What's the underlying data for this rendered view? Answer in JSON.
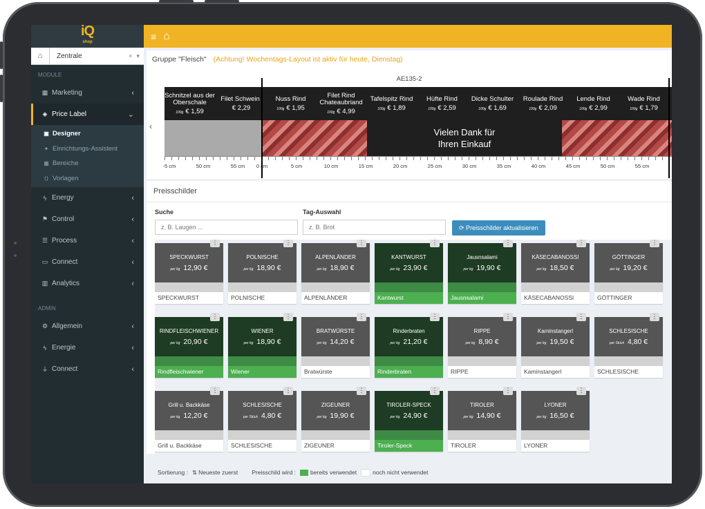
{
  "logo": {
    "main": "iQ",
    "sub": "shop"
  },
  "filial": {
    "value": "Zentrale",
    "clear": "×",
    "caret": "▾"
  },
  "sidebar": {
    "sections": {
      "module": "MODULE",
      "admin": "ADMIN"
    },
    "items_module": [
      {
        "label": "Marketing",
        "icon": "calendar-icon"
      },
      {
        "label": "Price Label",
        "icon": "tag-icon",
        "active": true
      },
      {
        "label": "Energy",
        "icon": "bolt-icon"
      },
      {
        "label": "Control",
        "icon": "flag-icon"
      },
      {
        "label": "Process",
        "icon": "sliders-icon"
      },
      {
        "label": "Connect",
        "icon": "window-icon"
      },
      {
        "label": "Analytics",
        "icon": "bar-chart-icon"
      }
    ],
    "submenu": [
      {
        "label": "Designer",
        "active": true
      },
      {
        "label": "Einrichtungs-Assistent"
      },
      {
        "label": "Bereiche"
      },
      {
        "label": "Vorlagen"
      }
    ],
    "items_admin": [
      {
        "label": "Allgemein",
        "icon": "gear-icon"
      },
      {
        "label": "Energie",
        "icon": "bolt-icon"
      },
      {
        "label": "Connect",
        "icon": "plug-icon"
      }
    ]
  },
  "group": {
    "title": "Gruppe \"Fleisch\"",
    "warning": "(Achtung! Wochentags-Layout ist aktiv für heute, Dienstag)"
  },
  "strip": {
    "id": "AE135-2",
    "slots": [
      {
        "name": "Schnitzel aus der Oberschale",
        "unit": "100g",
        "price": "€ 1,59"
      },
      {
        "name": "Filet Schwein",
        "unit": "",
        "price": "€ 2,29"
      },
      {
        "name": "Nuss Rind",
        "unit": "100g",
        "price": "€ 1,95"
      },
      {
        "name": "Filet Rind Chateaubriand",
        "unit": "100g",
        "price": "€ 4,99"
      },
      {
        "name": "Tafelspitz Rind",
        "unit": "100g",
        "price": "€ 1,89"
      },
      {
        "name": "Hüfte Rind",
        "unit": "100g",
        "price": "€ 2,59"
      },
      {
        "name": "Dicke Schulter",
        "unit": "100g",
        "price": "€ 1,69"
      },
      {
        "name": "Roulade Rind",
        "unit": "100g",
        "price": "€ 2,09"
      },
      {
        "name": "Lende Rind",
        "unit": "100g",
        "price": "€ 2,99"
      },
      {
        "name": "Wade Rind",
        "unit": "100g",
        "price": "€ 1,79"
      }
    ],
    "thanks_line1": "Vielen Dank für",
    "thanks_line2": "Ihren Einkauf",
    "ruler_left": [
      "-5 cm",
      "50 cm",
      "55 cm"
    ],
    "ruler_right": [
      "0 cm",
      "5 cm",
      "10 cm",
      "15 cm",
      "20 cm",
      "25 cm",
      "30 cm",
      "35 cm",
      "40 cm",
      "45 cm",
      "50 cm",
      "55 cm",
      "0 c"
    ]
  },
  "preis": {
    "title": "Preisschilder",
    "search_label": "Suche",
    "search_placeholder": "z. B. Laugen ...",
    "tag_label": "Tag-Auswahl",
    "tag_placeholder": "z. B. Brot",
    "refresh_label": "Preisschilder aktualisieren",
    "cards": [
      {
        "name": "SPECKWURST",
        "unit": "per kg",
        "price": "12,90 €",
        "label": "SPECKWURST",
        "used": false
      },
      {
        "name": "POLNISCHE",
        "unit": "per kg",
        "price": "18,90 €",
        "label": "POLNISCHE",
        "used": false
      },
      {
        "name": "ALPENLÄNDER",
        "unit": "per kg",
        "price": "18,90 €",
        "label": "ALPENLÄNDER",
        "used": false
      },
      {
        "name": "KANTWURST",
        "unit": "per kg",
        "price": "23,90 €",
        "label": "Kantwurst",
        "used": true
      },
      {
        "name": "Jausnsalami",
        "unit": "per kg",
        "price": "19,90 €",
        "label": "Jausnsalami",
        "used": true
      },
      {
        "name": "KÄSECABANOSSI",
        "unit": "per kg",
        "price": "18,50 €",
        "label": "KÄSECABANOSSI",
        "used": false
      },
      {
        "name": "GÖTTINGER",
        "unit": "per kg",
        "price": "19,20 €",
        "label": "GÖTTINGER",
        "used": false
      },
      {
        "name": "RINDFLEISCHWIENER",
        "unit": "per kg",
        "price": "20,90 €",
        "label": "Rindfleischwiener",
        "used": true
      },
      {
        "name": "WIENER",
        "unit": "per kg",
        "price": "18,90 €",
        "label": "Wiener",
        "used": true
      },
      {
        "name": "BRATWÜRSTE",
        "unit": "per kg",
        "price": "14,20 €",
        "label": "Bratwürste",
        "used": false
      },
      {
        "name": "Rinderbraten",
        "unit": "per kg",
        "price": "21,20 €",
        "label": "Rinderbraten",
        "used": true
      },
      {
        "name": "RIPPE",
        "unit": "per kg",
        "price": "8,90 €",
        "label": "RIPPE",
        "used": false
      },
      {
        "name": "Kaminstangerl",
        "unit": "per kg",
        "price": "19,50 €",
        "label": "Kaminstangerl",
        "used": false
      },
      {
        "name": "SCHLESISCHE",
        "unit": "per Stück",
        "price": "4,80 €",
        "label": "SCHLESISCHE",
        "used": false
      },
      {
        "name": "Grill u. Backkäse",
        "unit": "per kg",
        "price": "12,20 €",
        "label": "Grill u. Backkäse",
        "used": false
      },
      {
        "name": "SCHLESISCHE",
        "unit": "per Stück",
        "price": "4,80 €",
        "label": "SCHLESISCHE",
        "used": false
      },
      {
        "name": "ZIGEUNER",
        "unit": "per kg",
        "price": "19,90 €",
        "label": "ZIGEUNER",
        "used": false
      },
      {
        "name": "TIROLER-SPECK",
        "unit": "per kg",
        "price": "24,90 €",
        "label": "Tiroler-Speck",
        "used": true
      },
      {
        "name": "TIROLER",
        "unit": "per kg",
        "price": "14,90 €",
        "label": "TIROLER",
        "used": false
      },
      {
        "name": "LYONER",
        "unit": "per kg",
        "price": "16,50 €",
        "label": "LYONER",
        "used": false
      }
    ]
  },
  "footer": {
    "sort_label": "Sortierung :",
    "sort_value": "Neueste zuerst",
    "legend_label": "Preisschild wird :",
    "used_label": "bereits verwendet",
    "unused_label": "noch nicht verwendet"
  },
  "colors": {
    "accent": "#f0b323",
    "sidebar": "#222d32",
    "used": "#4caf50",
    "button": "#3c8dbc"
  }
}
